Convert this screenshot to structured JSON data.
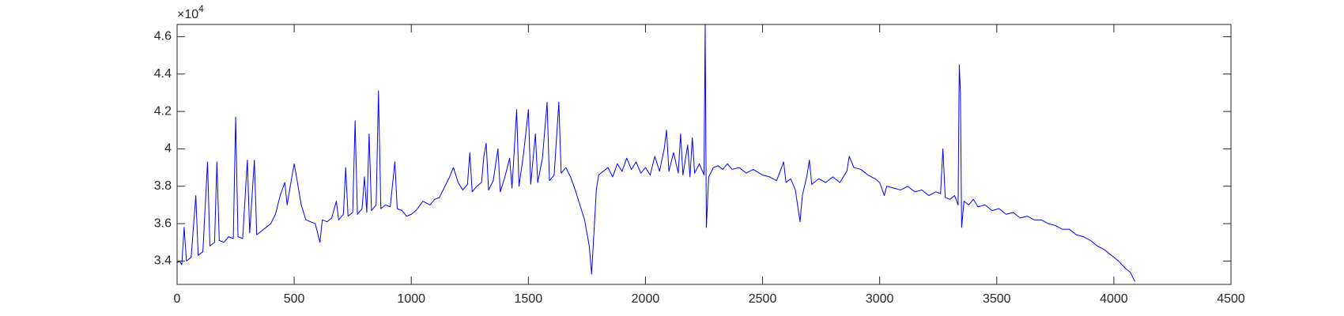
{
  "chart_data": {
    "type": "line",
    "y_multiplier": {
      "base": "×10",
      "exponent": "4"
    },
    "xlim": [
      0,
      4500
    ],
    "ylim": [
      32750,
      46650
    ],
    "xticks": [
      0,
      500,
      1000,
      1500,
      2000,
      2500,
      3000,
      3500,
      4000,
      4500
    ],
    "yticks": [
      {
        "value": 34000,
        "label": "3.4"
      },
      {
        "value": 36000,
        "label": "3.6"
      },
      {
        "value": 38000,
        "label": "3.8"
      },
      {
        "value": 40000,
        "label": "4"
      },
      {
        "value": 42000,
        "label": "4.2"
      },
      {
        "value": 44000,
        "label": "4.4"
      },
      {
        "value": 46000,
        "label": "4.6"
      }
    ],
    "grid": false,
    "series": [
      {
        "color": "#0000ff",
        "x": [
          0,
          10,
          20,
          30,
          40,
          60,
          80,
          90,
          110,
          130,
          140,
          160,
          170,
          180,
          200,
          220,
          240,
          250,
          260,
          280,
          300,
          310,
          330,
          340,
          360,
          380,
          400,
          420,
          440,
          460,
          470,
          490,
          500,
          510,
          530,
          550,
          570,
          590,
          610,
          620,
          640,
          660,
          680,
          690,
          710,
          720,
          730,
          750,
          760,
          770,
          790,
          800,
          810,
          820,
          830,
          850,
          860,
          870,
          890,
          910,
          930,
          940,
          960,
          980,
          1000,
          1020,
          1050,
          1080,
          1100,
          1120,
          1140,
          1160,
          1180,
          1200,
          1220,
          1240,
          1250,
          1260,
          1280,
          1300,
          1310,
          1320,
          1330,
          1350,
          1370,
          1380,
          1400,
          1420,
          1430,
          1450,
          1460,
          1480,
          1500,
          1510,
          1530,
          1540,
          1560,
          1580,
          1590,
          1610,
          1630,
          1640,
          1660,
          1680,
          1700,
          1720,
          1740,
          1760,
          1770,
          1780,
          1790,
          1800,
          1820,
          1840,
          1860,
          1880,
          1900,
          1920,
          1940,
          1960,
          1980,
          2000,
          2020,
          2040,
          2060,
          2080,
          2090,
          2100,
          2120,
          2140,
          2150,
          2160,
          2180,
          2190,
          2200,
          2210,
          2230,
          2250,
          2255,
          2260,
          2270,
          2290,
          2310,
          2330,
          2350,
          2370,
          2400,
          2430,
          2460,
          2500,
          2530,
          2560,
          2590,
          2600,
          2620,
          2640,
          2660,
          2670,
          2690,
          2700,
          2710,
          2740,
          2770,
          2800,
          2830,
          2860,
          2870,
          2890,
          2920,
          2950,
          2980,
          3000,
          3020,
          3030,
          3060,
          3090,
          3120,
          3150,
          3180,
          3210,
          3240,
          3260,
          3270,
          3280,
          3300,
          3320,
          3335,
          3340,
          3345,
          3350,
          3360,
          3380,
          3400,
          3420,
          3450,
          3480,
          3510,
          3540,
          3570,
          3600,
          3630,
          3660,
          3690,
          3720,
          3750,
          3780,
          3810,
          3840,
          3870,
          3900,
          3930,
          3960,
          3990,
          4020,
          4050,
          4070,
          4090
        ],
        "values": [
          33900,
          34000,
          33800,
          35800,
          34000,
          34200,
          37500,
          34300,
          34500,
          39300,
          34800,
          35000,
          39300,
          35100,
          35000,
          35300,
          35200,
          41700,
          35300,
          35200,
          39400,
          35500,
          39400,
          35400,
          35600,
          35800,
          36000,
          36500,
          37500,
          38200,
          37000,
          38500,
          39200,
          38500,
          37000,
          36200,
          36100,
          36000,
          35000,
          36200,
          36100,
          36300,
          37200,
          36200,
          36500,
          39000,
          36400,
          36600,
          41500,
          36500,
          36800,
          38500,
          36600,
          40800,
          36700,
          37000,
          43100,
          36800,
          37000,
          36900,
          39300,
          36800,
          36700,
          36400,
          36500,
          36700,
          37200,
          37000,
          37300,
          37400,
          37900,
          38400,
          39000,
          38200,
          37800,
          38100,
          39800,
          37700,
          38000,
          38200,
          39600,
          40300,
          37800,
          38300,
          40000,
          37700,
          38500,
          39500,
          37900,
          42100,
          38000,
          39800,
          42100,
          38100,
          40800,
          38200,
          39500,
          42500,
          38300,
          38600,
          42500,
          38700,
          39000,
          38500,
          37800,
          37000,
          36200,
          34800,
          33300,
          35500,
          37800,
          38600,
          38800,
          39000,
          38500,
          39200,
          38800,
          39500,
          38900,
          39300,
          38700,
          39000,
          38600,
          39600,
          38800,
          40000,
          41000,
          38800,
          39800,
          38700,
          40800,
          38600,
          40200,
          38500,
          40600,
          38700,
          39200,
          38600,
          46650,
          35800,
          38500,
          39000,
          39100,
          38900,
          39200,
          38900,
          39000,
          38700,
          38900,
          38600,
          38500,
          38300,
          39300,
          38200,
          38400,
          37800,
          36100,
          37500,
          38600,
          39400,
          38100,
          38400,
          38200,
          38500,
          38200,
          38800,
          39600,
          39000,
          38900,
          38600,
          38400,
          38200,
          37500,
          38000,
          37900,
          37800,
          38000,
          37700,
          37800,
          37500,
          37700,
          37600,
          40000,
          37400,
          37300,
          37500,
          37000,
          44500,
          43000,
          35800,
          37200,
          37000,
          37300,
          36900,
          37000,
          36700,
          36800,
          36500,
          36600,
          36300,
          36400,
          36200,
          36200,
          36000,
          35900,
          35700,
          35700,
          35400,
          35300,
          35100,
          34800,
          34600,
          34300,
          34000,
          33600,
          33400,
          32900
        ]
      }
    ]
  }
}
